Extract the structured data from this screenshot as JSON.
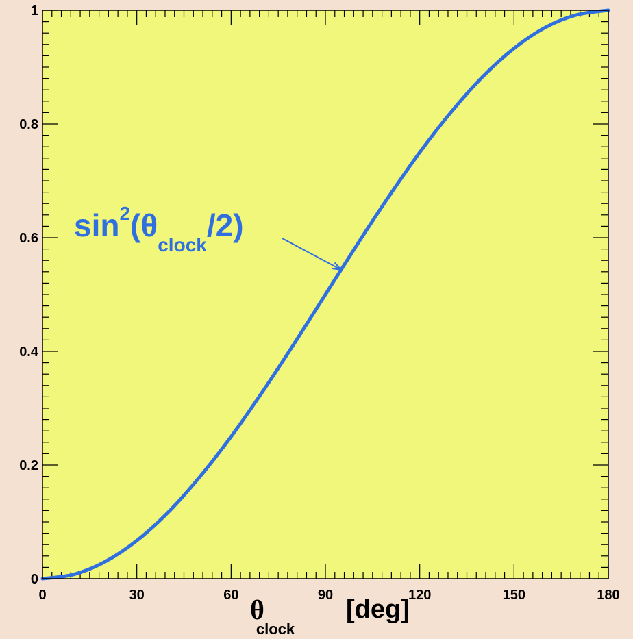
{
  "chart_data": {
    "type": "line",
    "xlabel_symbol": "θ",
    "xlabel_subscript": "clock",
    "xlabel_unit": "[deg]",
    "xlim": [
      0,
      180
    ],
    "ylim": [
      0,
      1
    ],
    "xticks": [
      0,
      30,
      60,
      90,
      120,
      150,
      180
    ],
    "xtick_labels": [
      "0",
      "30",
      "60",
      "90",
      "120",
      "150",
      "180"
    ],
    "yticks": [
      0,
      0.2,
      0.4,
      0.6,
      0.8,
      1
    ],
    "ytick_labels": [
      "0",
      "0.2",
      "0.4",
      "0.6",
      "0.8",
      "1"
    ],
    "grid": false,
    "series": [
      {
        "x": [
          0,
          10,
          20,
          30,
          40,
          50,
          60,
          70,
          80,
          90,
          100,
          110,
          120,
          130,
          140,
          150,
          160,
          170,
          180
        ],
        "y": [
          0,
          0.0076,
          0.0302,
          0.067,
          0.117,
          0.179,
          0.25,
          0.329,
          0.413,
          0.5,
          0.587,
          0.671,
          0.75,
          0.821,
          0.883,
          0.933,
          0.97,
          0.992,
          1
        ],
        "color": "#2f6fe0"
      }
    ],
    "annotation": {
      "text_main": "sin",
      "text_sup": "2",
      "text_open": "(θ",
      "text_sub": "clock",
      "text_close": "/2)",
      "points_to_x": 95
    },
    "colors": {
      "plot_background": "#f0f77a",
      "page_background": "#f5e1d2",
      "curve": "#2f6fe0"
    }
  }
}
